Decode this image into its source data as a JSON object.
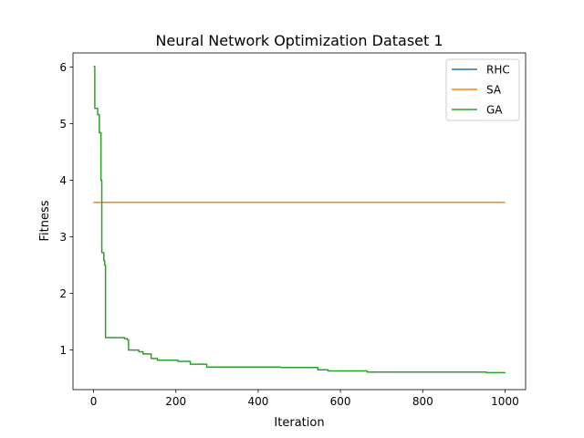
{
  "chart_data": {
    "type": "line",
    "title": "Neural Network Optimization Dataset 1",
    "xlabel": "Iteration",
    "ylabel": "Fitness",
    "xlim": [
      -50,
      1050
    ],
    "ylim": [
      0.3,
      6.25
    ],
    "xticks": [
      0,
      200,
      400,
      600,
      800,
      1000
    ],
    "yticks": [
      1,
      2,
      3,
      4,
      5,
      6
    ],
    "grid": false,
    "legend_position": "top-right",
    "series": [
      {
        "name": "RHC",
        "color": "#1f77b4",
        "points": [
          [
            0,
            3.61
          ],
          [
            1000,
            3.61
          ]
        ]
      },
      {
        "name": "SA",
        "color": "#ff7f0e",
        "points": [
          [
            0,
            3.61
          ],
          [
            1000,
            3.61
          ]
        ]
      },
      {
        "name": "GA",
        "color": "#2ca02c",
        "step": true,
        "points": [
          [
            0,
            6.01
          ],
          [
            3,
            5.27
          ],
          [
            10,
            5.16
          ],
          [
            14,
            4.84
          ],
          [
            16,
            4.84
          ],
          [
            18,
            4.0
          ],
          [
            20,
            2.72
          ],
          [
            25,
            2.58
          ],
          [
            27,
            2.5
          ],
          [
            29,
            1.22
          ],
          [
            75,
            1.2
          ],
          [
            82,
            1.18
          ],
          [
            85,
            1.0
          ],
          [
            110,
            0.97
          ],
          [
            120,
            0.93
          ],
          [
            140,
            0.85
          ],
          [
            155,
            0.82
          ],
          [
            205,
            0.8
          ],
          [
            235,
            0.75
          ],
          [
            275,
            0.7
          ],
          [
            455,
            0.69
          ],
          [
            545,
            0.65
          ],
          [
            570,
            0.63
          ],
          [
            665,
            0.61
          ],
          [
            955,
            0.6
          ],
          [
            1000,
            0.59
          ]
        ]
      }
    ]
  }
}
